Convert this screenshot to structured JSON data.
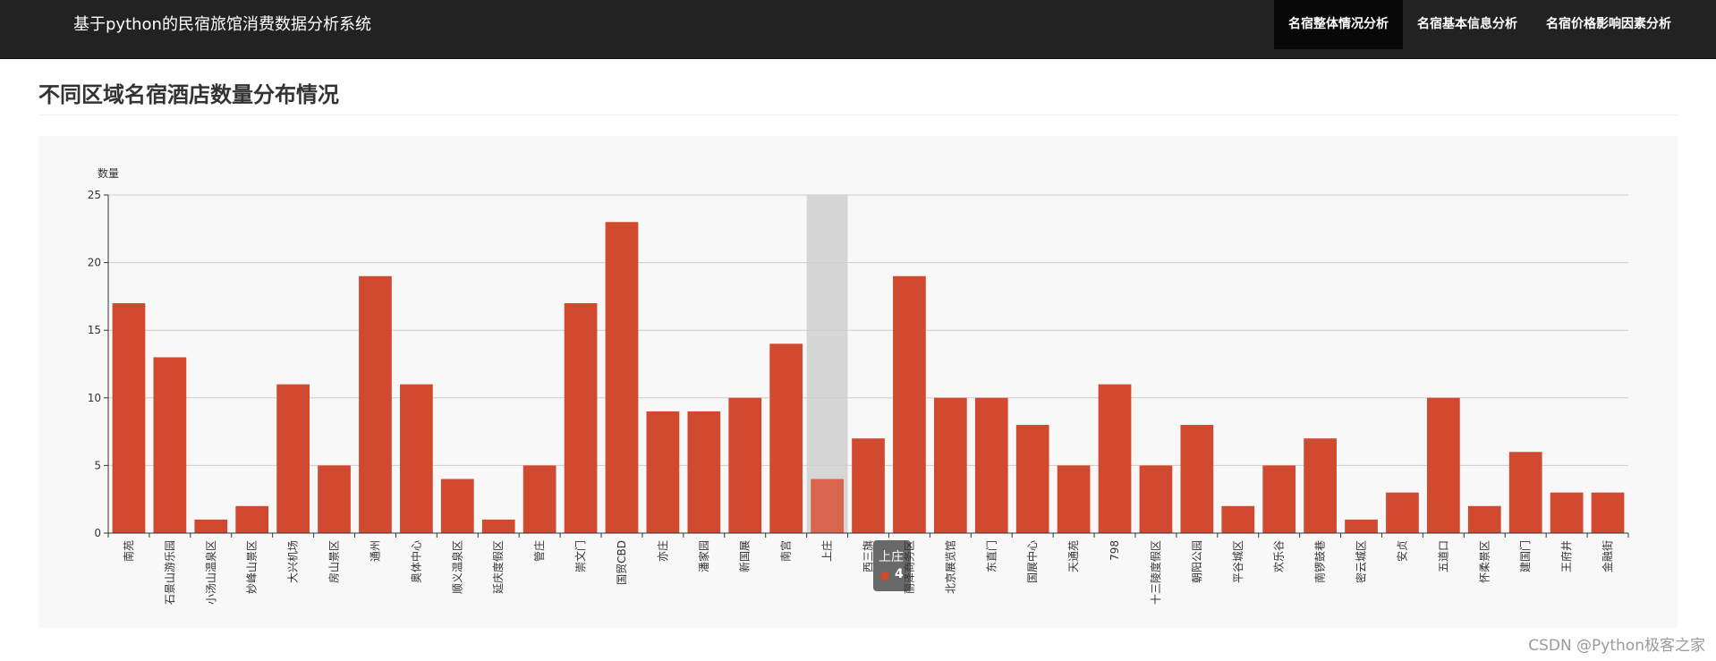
{
  "app": {
    "title": "基于python的民宿旅馆消费数据分析系统",
    "nav": [
      {
        "label": "名宿整体情况分析",
        "active": true
      },
      {
        "label": "名宿基本信息分析",
        "active": false
      },
      {
        "label": "名宿价格影响因素分析",
        "active": false
      }
    ]
  },
  "page": {
    "title": "不同区域名宿酒店数量分布情况"
  },
  "tooltip": {
    "category": "上庄",
    "value": "4"
  },
  "watermark": "CSDN @Python极客之家",
  "colors": {
    "bar": "#d14a30",
    "bar_hover": "#d96450",
    "axis_pointer": "#d6d6d6"
  },
  "chart_data": {
    "type": "bar",
    "ylabel": "数量",
    "xlabel": "",
    "ylim": [
      0,
      25
    ],
    "yticks": [
      0,
      5,
      10,
      15,
      20,
      25
    ],
    "grid": true,
    "highlighted_category": "上庄",
    "categories": [
      "南苑",
      "石景山游乐园",
      "小汤山温泉区",
      "妙峰山景区",
      "大兴机场",
      "房山景区",
      "通州",
      "奥体中心",
      "顺义温泉区",
      "延庆度假区",
      "管庄",
      "崇文门",
      "国贸CBD",
      "亦庄",
      "潘家园",
      "新国展",
      "南宫",
      "上庄",
      "西三旗",
      "丽泽商务区",
      "北京展览馆",
      "东直门",
      "国展中心",
      "天通苑",
      "798",
      "十三陵度假区",
      "朝阳公园",
      "平谷城区",
      "欢乐谷",
      "南锣鼓巷",
      "密云城区",
      "安贞",
      "五道口",
      "怀柔景区",
      "建国门",
      "王府井",
      "金融街"
    ],
    "values": [
      17,
      13,
      1,
      2,
      11,
      5,
      19,
      11,
      4,
      1,
      5,
      17,
      23,
      9,
      9,
      10,
      14,
      4,
      7,
      19,
      10,
      10,
      8,
      5,
      11,
      5,
      8,
      2,
      5,
      7,
      1,
      3,
      10,
      2,
      6,
      3,
      3
    ]
  }
}
